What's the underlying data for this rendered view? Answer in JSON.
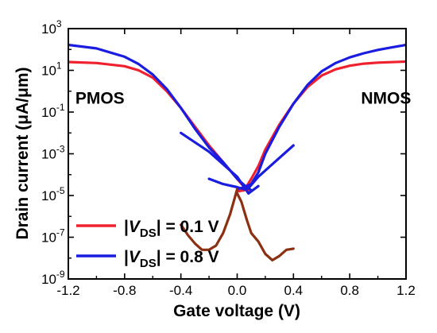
{
  "chart_data": {
    "type": "line",
    "xlabel": "Gate voltage (V)",
    "ylabel_main": "Drain current (",
    "ylabel_unit": "μA/μm",
    "ylabel_close": ")",
    "xlim": [
      -1.2,
      1.2
    ],
    "ylim_log10": [
      -9,
      3
    ],
    "y_scale": "log",
    "x_ticks": [
      {
        "v": -1.2,
        "label": "-1.2"
      },
      {
        "v": -0.8,
        "label": "-0.8"
      },
      {
        "v": -0.4,
        "label": "-0.4"
      },
      {
        "v": 0.0,
        "label": "0.0"
      },
      {
        "v": 0.4,
        "label": "0.4"
      },
      {
        "v": 0.8,
        "label": "0.8"
      },
      {
        "v": 1.2,
        "label": "1.2"
      }
    ],
    "y_ticks": [
      {
        "exp": 3,
        "mant": "10",
        "sup": "3"
      },
      {
        "exp": 1,
        "mant": "10",
        "sup": "1"
      },
      {
        "exp": -1,
        "mant": "10",
        "sup": "-1"
      },
      {
        "exp": -3,
        "mant": "10",
        "sup": "-3"
      },
      {
        "exp": -5,
        "mant": "10",
        "sup": "-5"
      },
      {
        "exp": -7,
        "mant": "10",
        "sup": "-7"
      },
      {
        "exp": -9,
        "mant": "10",
        "sup": "-9"
      }
    ],
    "annotations": [
      {
        "text": "PMOS",
        "x": -1.15,
        "logy": -0.6
      },
      {
        "text": "NMOS",
        "x": 0.88,
        "logy": -0.6
      }
    ],
    "legend": {
      "position": "lower-left",
      "entries": [
        {
          "series": 0,
          "label": {
            "pre": "|",
            "v": "V",
            "sub": "DS",
            "post": "| = 0.1 V"
          }
        },
        {
          "series": 1,
          "label": {
            "pre": "|",
            "v": "V",
            "sub": "DS",
            "post": "| = 0.8 V"
          }
        }
      ]
    },
    "series": [
      {
        "color": "#f0212e",
        "curves": [
          {
            "x": [
              -1.2,
              -1.0,
              -0.8,
              -0.7,
              -0.6,
              -0.5,
              -0.4,
              -0.3,
              -0.2,
              -0.1,
              0.0,
              0.05,
              0.1
            ],
            "logy": [
              1.4,
              1.35,
              1.2,
              1.0,
              0.65,
              0.0,
              -0.8,
              -1.7,
              -2.6,
              -3.4,
              -4.2,
              -4.6,
              -4.8
            ]
          },
          {
            "x": [
              0.0,
              0.05,
              0.1,
              0.15,
              0.2,
              0.3,
              0.4,
              0.5,
              0.6,
              0.7,
              0.8,
              0.9,
              1.0,
              1.2
            ],
            "logy": [
              -4.8,
              -4.75,
              -4.2,
              -3.6,
              -2.8,
              -1.6,
              -0.6,
              0.2,
              0.75,
              1.05,
              1.22,
              1.32,
              1.37,
              1.42
            ]
          }
        ]
      },
      {
        "color": "#1a1de0",
        "curves": [
          {
            "x": [
              -1.2,
              -1.0,
              -0.8,
              -0.7,
              -0.6,
              -0.5,
              -0.4,
              -0.3,
              -0.2,
              -0.1,
              0.0,
              0.05,
              0.1
            ],
            "logy": [
              2.22,
              2.05,
              1.65,
              1.3,
              0.8,
              0.1,
              -0.8,
              -1.8,
              -2.7,
              -3.4,
              -4.2,
              -4.5,
              -4.75
            ]
          },
          {
            "x": [
              -0.4,
              -0.2,
              0.0,
              0.08,
              0.15
            ],
            "logy": [
              -2.0,
              -2.9,
              -4.1,
              -4.9,
              -4.55
            ]
          },
          {
            "x": [
              0.0,
              0.05,
              0.1,
              0.15,
              0.2,
              0.3,
              0.4,
              0.5,
              0.6,
              0.7,
              0.8,
              0.9,
              1.0,
              1.1,
              1.2
            ],
            "logy": [
              -4.7,
              -4.6,
              -4.45,
              -3.9,
              -3.0,
              -1.7,
              -0.6,
              0.3,
              0.95,
              1.35,
              1.62,
              1.82,
              1.98,
              2.1,
              2.22
            ]
          },
          {
            "x": [
              -0.2,
              -0.1,
              0.0,
              0.05,
              0.08,
              0.15,
              0.25,
              0.4
            ],
            "logy": [
              -4.2,
              -4.45,
              -4.6,
              -4.7,
              -4.65,
              -4.1,
              -3.5,
              -2.6
            ]
          }
        ]
      },
      {
        "color": "#8b3010",
        "curves": [
          {
            "x": [
              -0.4,
              -0.35,
              -0.3,
              -0.25,
              -0.2,
              -0.15,
              -0.1,
              -0.05,
              0.0
            ],
            "logy": [
              -6.4,
              -6.9,
              -7.3,
              -7.6,
              -7.6,
              -7.4,
              -6.8,
              -5.9,
              -4.7
            ]
          },
          {
            "x": [
              0.0,
              0.03,
              0.07,
              0.1,
              0.15,
              0.2,
              0.25,
              0.3,
              0.35,
              0.4
            ],
            "logy": [
              -4.9,
              -5.3,
              -6.2,
              -6.8,
              -7.2,
              -7.8,
              -8.1,
              -7.9,
              -7.6,
              -7.55
            ]
          }
        ]
      }
    ]
  }
}
